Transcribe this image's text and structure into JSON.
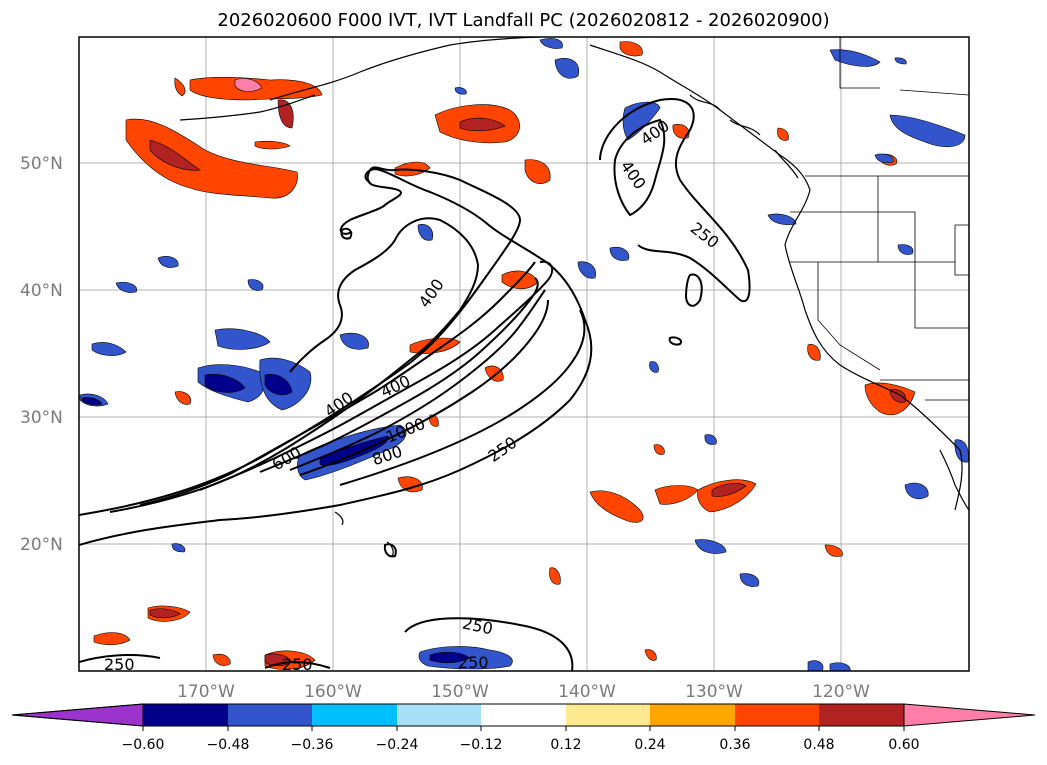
{
  "title": "2026020600 F000 IVT, IVT Landfall PC (2026020812 - 2026020900)",
  "map": {
    "lon_range": [
      -180,
      -110
    ],
    "lat_range": [
      10,
      60
    ],
    "lat_ticks": [
      "20°N",
      "30°N",
      "40°N",
      "50°N"
    ],
    "lon_ticks": [
      "170°W",
      "160°W",
      "150°W",
      "140°W",
      "130°W",
      "120°W"
    ],
    "grid": true,
    "contour_labels": [
      "400",
      "400",
      "250",
      "400",
      "400",
      "400",
      "600",
      "1000",
      "800",
      "250",
      "250",
      "250",
      "250",
      "250"
    ]
  },
  "colorbar": {
    "ticks": [
      "−0.60",
      "−0.48",
      "−0.36",
      "−0.24",
      "−0.12",
      "0.12",
      "0.24",
      "0.36",
      "0.48",
      "0.60"
    ],
    "colors": [
      "#9a34cc",
      "#00008b",
      "#3355cc",
      "#00bfff",
      "#a8e0f8",
      "#ffffff",
      "#fde98f",
      "#ffa500",
      "#ff4500",
      "#b22222",
      "#ff7fa8"
    ],
    "extend": "both"
  }
}
